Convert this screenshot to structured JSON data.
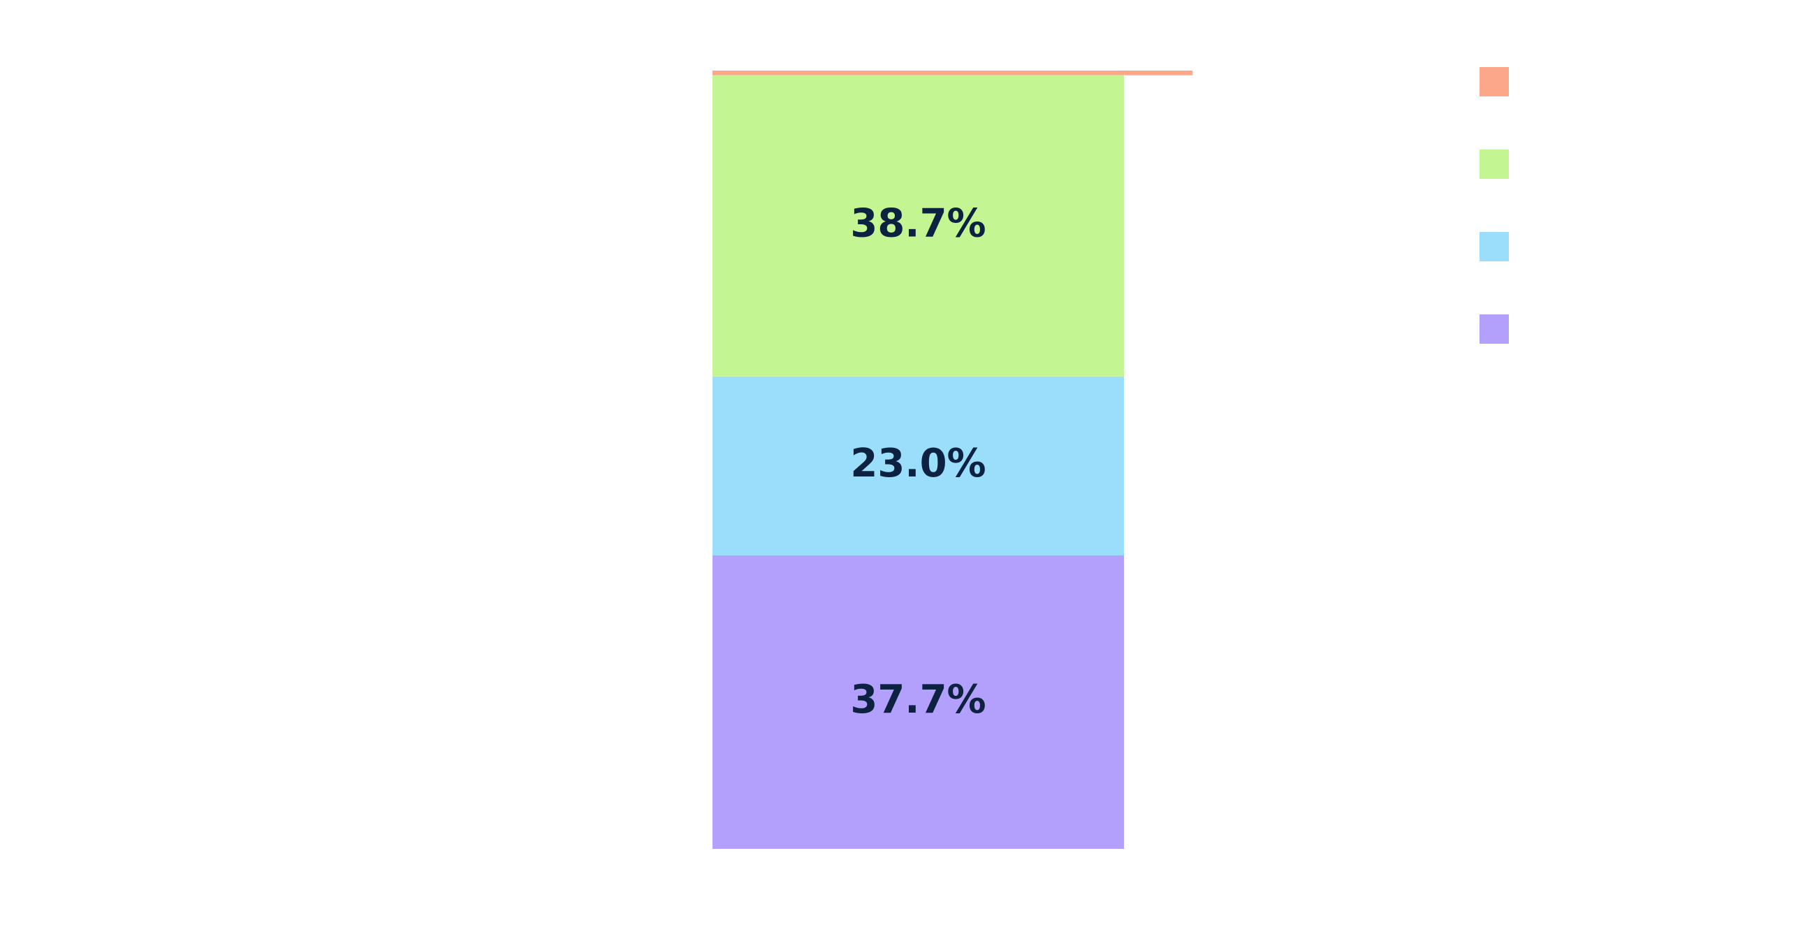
{
  "chart_data": {
    "type": "bar",
    "stacked": true,
    "categories": [
      null
    ],
    "series": [
      {
        "color": "#b3a0fd",
        "values": [
          37.7
        ],
        "value_labels": [
          "37.7%"
        ]
      },
      {
        "color": "#9adefc",
        "values": [
          23.0
        ],
        "value_labels": [
          "23.0%"
        ]
      },
      {
        "color": "#c4f593",
        "values": [
          38.7
        ],
        "value_labels": [
          "38.7%"
        ]
      },
      {
        "color": "#fda78a",
        "values": [
          0.6
        ]
      }
    ],
    "legend": "top-right"
  }
}
